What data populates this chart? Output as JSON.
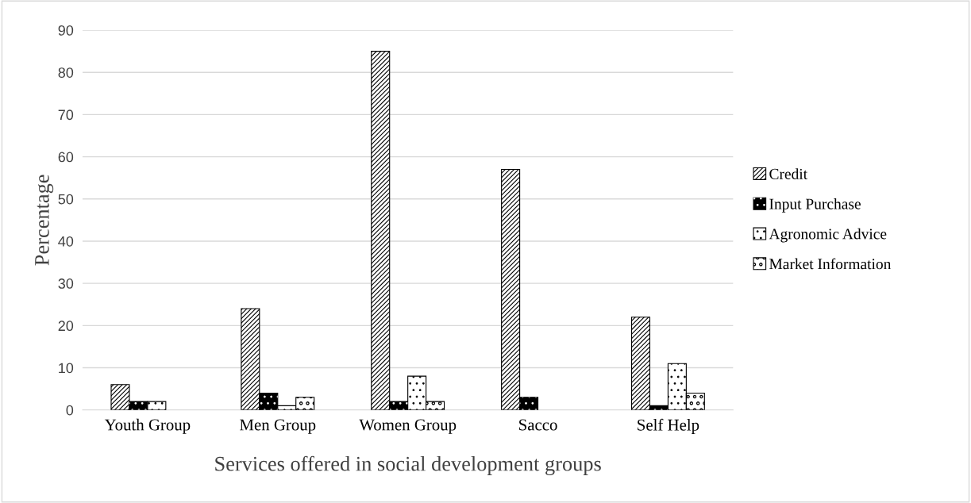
{
  "chart_data": {
    "type": "bar",
    "xlabel": "Services offered in social development groups",
    "ylabel": "Percentage",
    "categories": [
      "Youth Group",
      "Men Group",
      "Women Group",
      "Sacco",
      "Self Help"
    ],
    "series": [
      {
        "name": "Credit",
        "color": "#ffffff",
        "values": [
          6,
          24,
          85,
          57,
          22
        ]
      },
      {
        "name": "Input Purchase",
        "color": "#000000",
        "values": [
          2,
          4,
          2,
          3,
          1
        ]
      },
      {
        "name": "Agronomic Advice",
        "color": "#ffffff",
        "values": [
          2,
          1,
          8,
          0,
          11
        ]
      },
      {
        "name": "Market Information",
        "color": "#ffffff",
        "values": [
          0,
          3,
          2,
          0,
          4
        ]
      }
    ],
    "ylim": [
      0,
      90
    ],
    "yticks": [
      0,
      10,
      20,
      30,
      40,
      50,
      60,
      70,
      80,
      90
    ],
    "grid": "y",
    "legend": "right"
  }
}
